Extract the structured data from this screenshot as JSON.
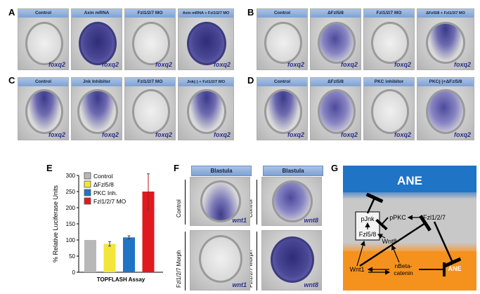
{
  "panel_labels": {
    "A": "A",
    "B": "B",
    "C": "C",
    "D": "D",
    "E": "E",
    "F": "F",
    "G": "G"
  },
  "panel_A": {
    "headers": [
      "Control",
      "Axin mRNA",
      "Fzl1/2/7 MO",
      "Axin mRNA + Fzl1/2/7 MO"
    ],
    "gene": "foxq2"
  },
  "panel_B": {
    "headers": [
      "Control",
      "ΔFzl5/8",
      "Fzl1/2/7 MO",
      "ΔFzl5/8 + Fzl1/2/7 MO"
    ],
    "gene": "foxq2"
  },
  "panel_C": {
    "headers": [
      "Control",
      "Jnk Inhibitor",
      "Fzl1/2/7 MO",
      "Jnk(-) + Fzl1/2/7 MO"
    ],
    "gene": "foxq2"
  },
  "panel_D": {
    "headers": [
      "Control",
      "ΔFzl5/8",
      "PKC inhibitor",
      "PKC(-)+ΔFzl5/8"
    ],
    "gene": "foxq2"
  },
  "panel_F": {
    "headers": [
      "Blastula",
      "Blastula"
    ],
    "row_labels": [
      "Control",
      "Fzl1/2/7 Morph"
    ],
    "genes": [
      "wnt1",
      "wnt8",
      "wnt1",
      "wnt8"
    ]
  },
  "panel_G": {
    "ane_title": "ANE",
    "nodes": {
      "pjnk": "pJnk",
      "fzl58": "Fzl5/8",
      "ppkc": "pPKC",
      "fzl127": "Fzl1/2/7",
      "wnt8": "Wnt8",
      "wnt1": "Wnt1",
      "nbeta": "nBeta-\ncatenin",
      "ane_small": "ANE"
    },
    "colors": {
      "ane_top": "#1f74c6",
      "middle": "#c8c8c8",
      "bottom": "#f5921e"
    }
  },
  "chart_data": {
    "type": "bar",
    "categories": [
      "Control",
      "ΔFzl5/8",
      "PKC Inh.",
      "Fzl1/2/7 MO"
    ],
    "values": [
      100,
      88,
      108,
      250
    ],
    "errors": [
      0,
      7,
      5,
      55
    ],
    "colors": [
      "#b8b8b8",
      "#f2e63a",
      "#1f74c6",
      "#e0191f"
    ],
    "xlabel": "TOPFLASH Assay",
    "ylabel": "% Relative Luciferase Units",
    "ylim": [
      0,
      300
    ],
    "yticks": [
      0,
      50,
      100,
      150,
      200,
      250,
      300
    ],
    "legend": [
      "Control",
      "ΔFzl5/8",
      "PKC Inh.",
      "Fzl1/2/7 MO"
    ],
    "legend_position": "top-left"
  }
}
